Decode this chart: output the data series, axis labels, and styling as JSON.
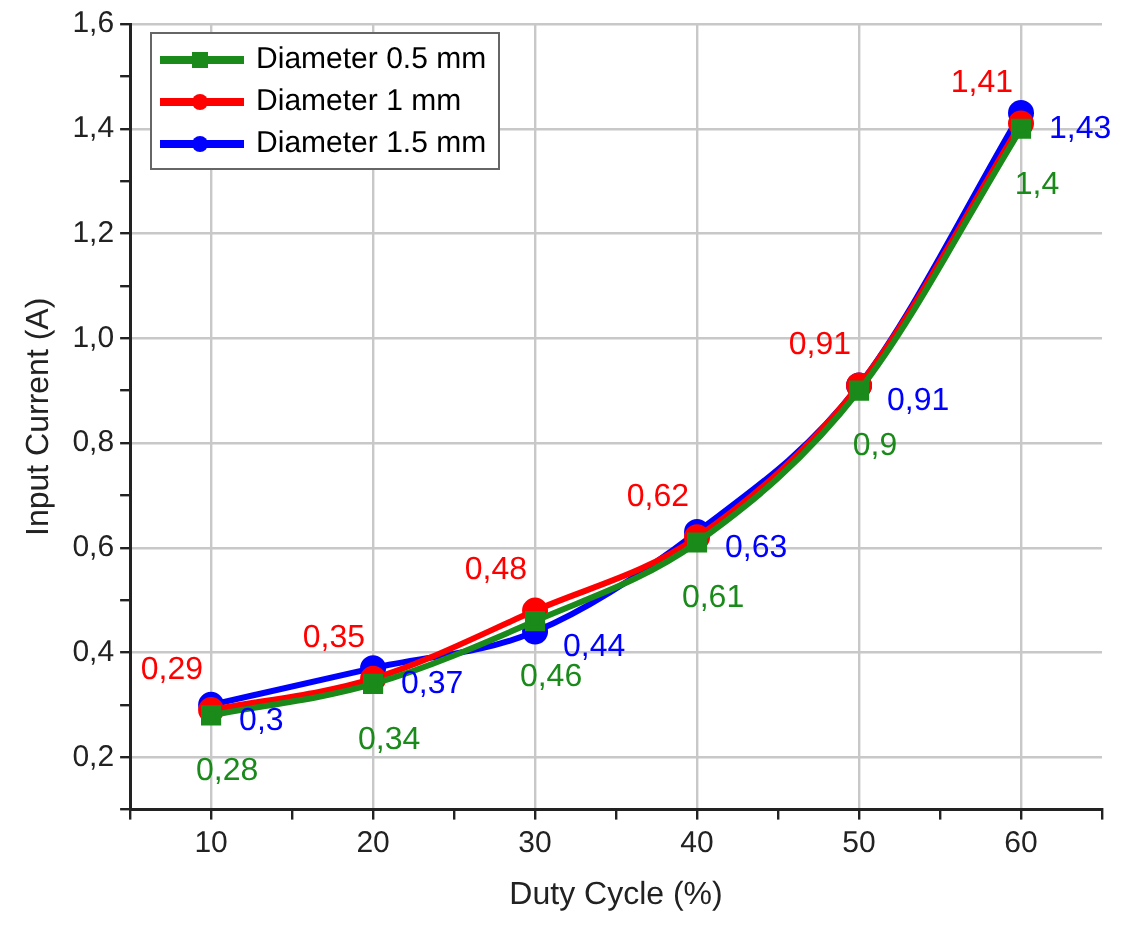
{
  "chart_data": {
    "type": "line",
    "xlabel": "Duty Cycle (%)",
    "ylabel": "Input Current (A)",
    "x": [
      10,
      20,
      30,
      40,
      50,
      60
    ],
    "series": [
      {
        "name": "Diameter 0.5 mm",
        "color": "#1a8a1a",
        "marker": "square",
        "values": [
          0.28,
          0.34,
          0.46,
          0.61,
          0.9,
          1.4
        ],
        "value_labels": [
          "0,28",
          "0,34",
          "0,46",
          "0,61",
          "0,9",
          "1,4"
        ]
      },
      {
        "name": "Diameter 1 mm",
        "color": "#ff0000",
        "marker": "circle",
        "values": [
          0.29,
          0.35,
          0.48,
          0.62,
          0.91,
          1.41
        ],
        "value_labels": [
          "0,29",
          "0,35",
          "0,48",
          "0,62",
          "0,91",
          "1,41"
        ]
      },
      {
        "name": "Diameter 1.5 mm",
        "color": "#0000ff",
        "marker": "circle",
        "values": [
          0.3,
          0.37,
          0.44,
          0.63,
          0.91,
          1.43
        ],
        "value_labels": [
          "0,3",
          "0,37",
          "0,44",
          "0,63",
          "0,91",
          "1,43"
        ]
      }
    ],
    "xlim": [
      5,
      65
    ],
    "xticks": [
      {
        "value": 5,
        "label": null
      },
      10,
      {
        "value": 15,
        "label": null
      },
      20,
      {
        "value": 25,
        "label": null
      },
      30,
      {
        "value": 35,
        "label": null
      },
      40,
      {
        "value": 45,
        "label": null
      },
      50,
      {
        "value": 55,
        "label": null
      },
      60,
      {
        "value": 65,
        "label": null
      }
    ],
    "ylim": [
      0.1,
      1.6
    ],
    "yticks": [
      {
        "value": 0.1,
        "label": null
      },
      {
        "value": 0.2,
        "label": "0,2"
      },
      {
        "value": 0.3,
        "label": null
      },
      {
        "value": 0.4,
        "label": "0,4"
      },
      {
        "value": 0.5,
        "label": null
      },
      {
        "value": 0.6,
        "label": "0,6"
      },
      {
        "value": 0.7,
        "label": null
      },
      {
        "value": 0.8,
        "label": "0,8"
      },
      {
        "value": 0.9,
        "label": null
      },
      {
        "value": 1.0,
        "label": "1,0"
      },
      {
        "value": 1.1,
        "label": null
      },
      {
        "value": 1.2,
        "label": "1,2"
      },
      {
        "value": 1.3,
        "label": null
      },
      {
        "value": 1.4,
        "label": "1,4"
      },
      {
        "value": 1.5,
        "label": null
      },
      {
        "value": 1.6,
        "label": "1,6"
      }
    ],
    "grid": true,
    "legend": "top left",
    "line_style": "solid"
  }
}
